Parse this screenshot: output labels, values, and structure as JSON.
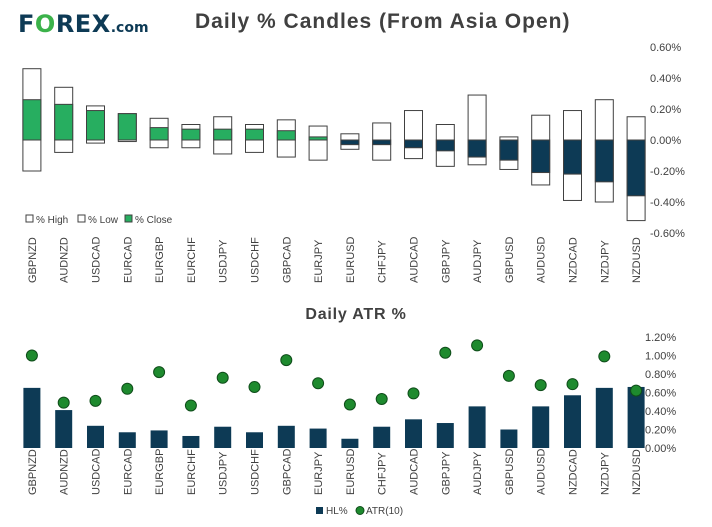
{
  "header": {
    "logo_brand_1": "F",
    "logo_brand_o": "O",
    "logo_brand_2": "REX",
    "logo_suffix": ".com",
    "title": "Daily % Candles (From Asia Open)"
  },
  "colors": {
    "navy": "#0d3a55",
    "green": "#27ae60",
    "dot_green": "#1e8a2e",
    "outline": "#404040"
  },
  "chart_data": [
    {
      "type": "bar",
      "title": "Daily % Candles (From Asia Open)",
      "categories": [
        "GBPNZD",
        "AUDNZD",
        "USDCAD",
        "EURCAD",
        "EURGBP",
        "EURCHF",
        "USDJPY",
        "USDCHF",
        "GBPCAD",
        "EURJPY",
        "EURUSD",
        "CHFJPY",
        "AUDCAD",
        "GBPJPY",
        "AUDJPY",
        "GBPUSD",
        "AUDUSD",
        "NZDCAD",
        "NZDJPY",
        "NZDUSD"
      ],
      "series": [
        {
          "name": "% High",
          "values": [
            0.46,
            0.34,
            0.22,
            0.17,
            0.14,
            0.1,
            0.15,
            0.1,
            0.13,
            0.09,
            0.04,
            0.11,
            0.19,
            0.1,
            0.29,
            0.02,
            0.16,
            0.19,
            0.26,
            0.15
          ]
        },
        {
          "name": "% Low",
          "values": [
            -0.2,
            -0.08,
            -0.02,
            -0.01,
            -0.05,
            -0.05,
            -0.09,
            -0.08,
            -0.11,
            -0.13,
            -0.06,
            -0.13,
            -0.12,
            -0.17,
            -0.16,
            -0.19,
            -0.29,
            -0.39,
            -0.4,
            -0.52
          ]
        },
        {
          "name": "% Close",
          "values": [
            0.26,
            0.23,
            0.19,
            0.17,
            0.08,
            0.07,
            0.07,
            0.07,
            0.06,
            0.02,
            -0.03,
            -0.03,
            -0.05,
            -0.07,
            -0.11,
            -0.13,
            -0.21,
            -0.22,
            -0.27,
            -0.36
          ]
        }
      ],
      "ylim": [
        -0.6,
        0.6
      ],
      "yticks": [
        "0.60%",
        "0.40%",
        "0.20%",
        "0.00%",
        "-0.20%",
        "-0.40%",
        "-0.60%"
      ],
      "legend": [
        "% High",
        "% Low",
        "% Close"
      ]
    },
    {
      "type": "bar",
      "title": "Daily ATR %",
      "categories": [
        "GBPNZD",
        "AUDNZD",
        "USDCAD",
        "EURCAD",
        "EURGBP",
        "EURCHF",
        "USDJPY",
        "USDCHF",
        "GBPCAD",
        "EURJPY",
        "EURUSD",
        "CHFJPY",
        "AUDCAD",
        "GBPJPY",
        "AUDJPY",
        "GBPUSD",
        "AUDUSD",
        "NZDCAD",
        "NZDJPY",
        "NZDUSD"
      ],
      "series": [
        {
          "name": "HL%",
          "values": [
            0.65,
            0.41,
            0.24,
            0.17,
            0.19,
            0.13,
            0.23,
            0.17,
            0.24,
            0.21,
            0.1,
            0.23,
            0.31,
            0.27,
            0.45,
            0.2,
            0.45,
            0.57,
            0.65,
            0.66
          ]
        },
        {
          "name": "ATR(10)",
          "values": [
            1.0,
            0.49,
            0.51,
            0.64,
            0.82,
            0.46,
            0.76,
            0.66,
            0.95,
            0.7,
            0.47,
            0.53,
            0.59,
            1.03,
            1.11,
            0.78,
            0.68,
            0.69,
            0.99,
            0.62
          ]
        }
      ],
      "ylim": [
        0,
        1.2
      ],
      "yticks": [
        "1.20%",
        "1.00%",
        "0.80%",
        "0.60%",
        "0.40%",
        "0.20%",
        "0.00%"
      ],
      "legend": [
        "HL%",
        "ATR(10)"
      ]
    }
  ]
}
